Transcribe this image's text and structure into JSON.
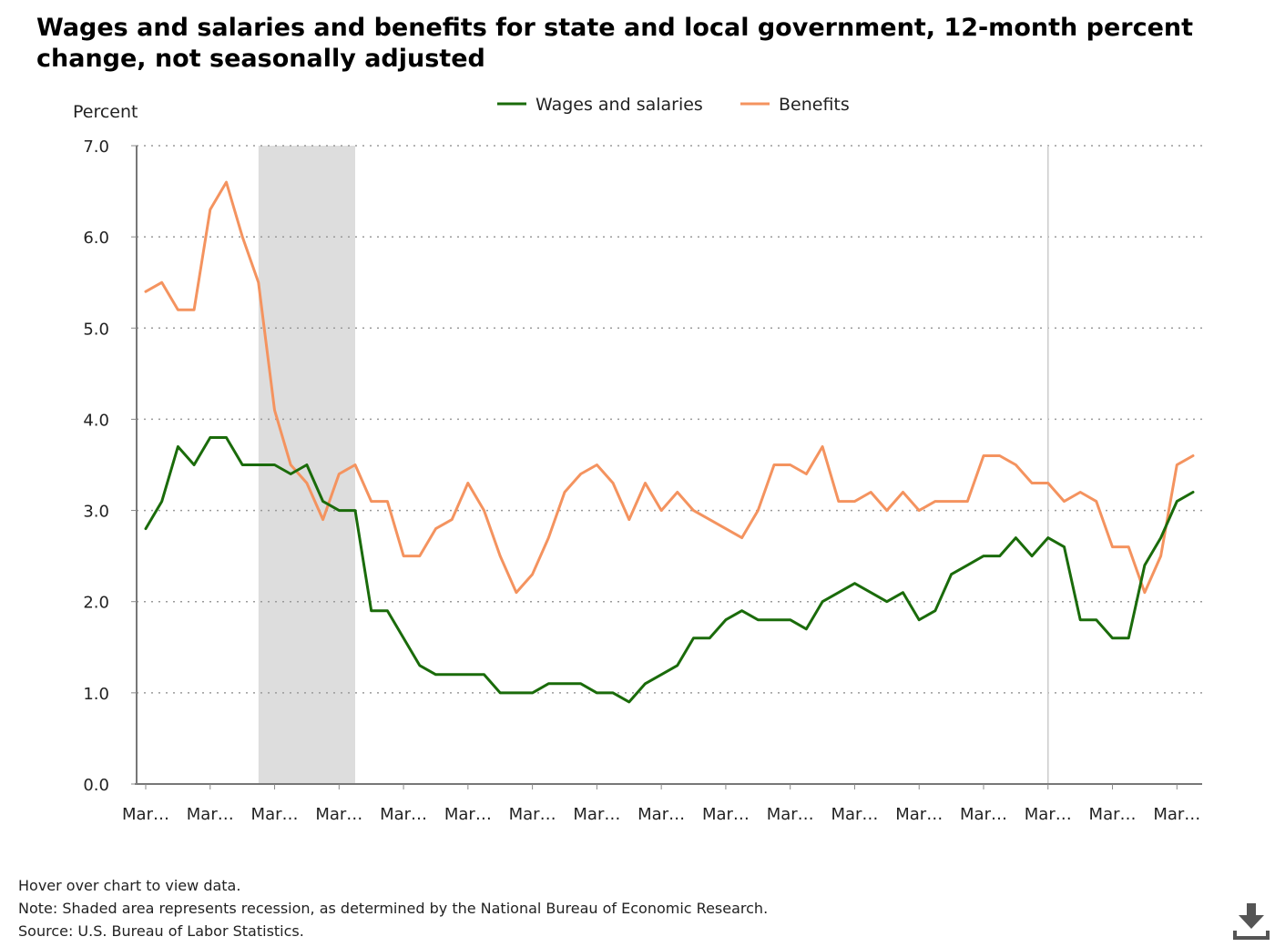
{
  "title": "Wages and salaries and benefits for state and local government, 12-month percent change, not seasonally adjusted",
  "notes": {
    "hover": "Hover over chart to view data.",
    "note": "Note: Shaded area represents recession, as determined by the National Bureau of Economic Research.",
    "source": "Source: U.S. Bureau of Labor Statistics."
  },
  "download": {
    "icon": "download-icon"
  },
  "chart_data": {
    "type": "line",
    "title": "Wages and salaries and benefits for state and local government, 12-month percent change, not seasonally adjusted",
    "ylabel": "Percent",
    "xlabel": "",
    "ylim": [
      0,
      7
    ],
    "yticks": [
      "0.0",
      "1.0",
      "2.0",
      "3.0",
      "4.0",
      "5.0",
      "6.0",
      "7.0"
    ],
    "xtick_labels": [
      "Mar…",
      "Mar…",
      "Mar…",
      "Mar…",
      "Mar…",
      "Mar…",
      "Mar…",
      "Mar…",
      "Mar…",
      "Mar…",
      "Mar…",
      "Mar…",
      "Mar…",
      "Mar…",
      "Mar…",
      "Mar…",
      "Mar…"
    ],
    "grid": true,
    "legend_position": "top-center",
    "recession_shading": {
      "start_index": 7,
      "end_index": 13,
      "color": "#dddddd"
    },
    "series": [
      {
        "name": "Wages and salaries",
        "color": "#1a6b0a",
        "values": [
          2.8,
          3.1,
          3.7,
          3.5,
          3.8,
          3.8,
          3.5,
          3.5,
          3.5,
          3.4,
          3.5,
          3.1,
          3.0,
          3.0,
          1.9,
          1.9,
          1.6,
          1.3,
          1.2,
          1.2,
          1.2,
          1.2,
          1.0,
          1.0,
          1.0,
          1.1,
          1.1,
          1.1,
          1.0,
          1.0,
          0.9,
          1.1,
          1.2,
          1.3,
          1.6,
          1.6,
          1.8,
          1.9,
          1.8,
          1.8,
          1.8,
          1.7,
          2.0,
          2.1,
          2.2,
          2.1,
          2.0,
          2.1,
          1.8,
          1.9,
          2.3,
          2.4,
          2.5,
          2.5,
          2.7,
          2.5,
          2.7,
          2.6,
          1.8,
          1.8,
          1.6,
          1.6,
          2.4,
          2.7,
          3.1,
          3.2
        ]
      },
      {
        "name": "Benefits",
        "color": "#f4935f",
        "values": [
          5.4,
          5.5,
          5.2,
          5.2,
          6.3,
          6.6,
          6.0,
          5.5,
          4.1,
          3.5,
          3.3,
          2.9,
          3.4,
          3.5,
          3.1,
          3.1,
          2.5,
          2.5,
          2.8,
          2.9,
          3.3,
          3.0,
          2.5,
          2.1,
          2.3,
          2.7,
          3.2,
          3.4,
          3.5,
          3.3,
          2.9,
          3.3,
          3.0,
          3.2,
          3.0,
          2.9,
          2.8,
          2.7,
          3.0,
          3.5,
          3.5,
          3.4,
          3.7,
          3.1,
          3.1,
          3.2,
          3.0,
          3.2,
          3.0,
          3.1,
          3.1,
          3.1,
          3.6,
          3.6,
          3.5,
          3.3,
          3.3,
          3.1,
          3.2,
          3.1,
          2.6,
          2.6,
          2.1,
          2.5,
          3.5,
          3.6
        ]
      }
    ]
  }
}
